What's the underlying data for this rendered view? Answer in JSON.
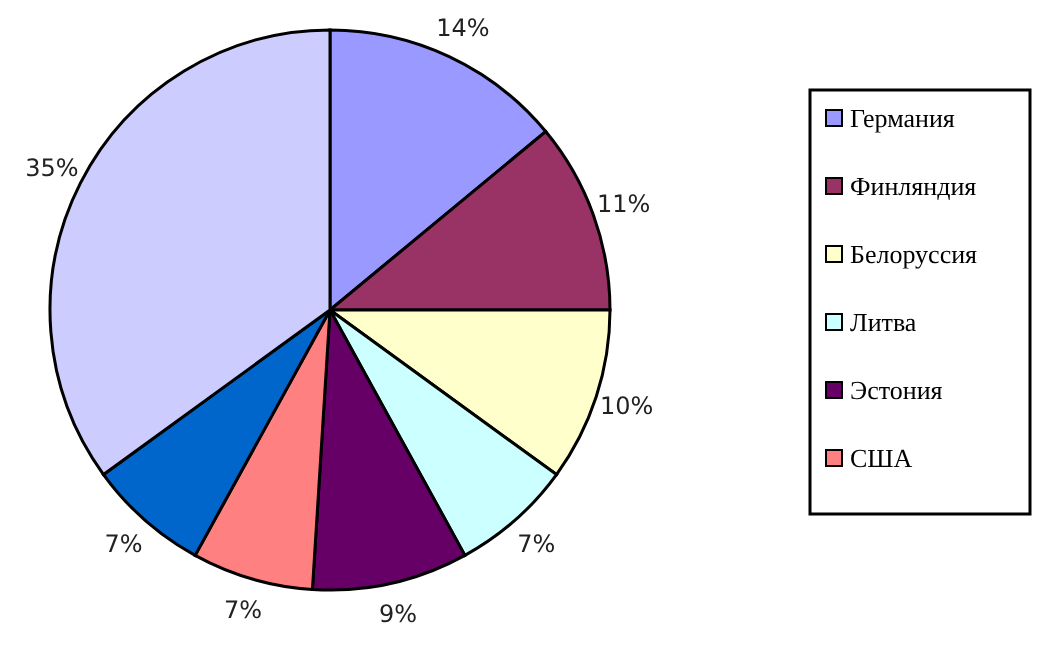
{
  "chart_data": {
    "type": "pie",
    "categories": [
      "Германия",
      "Финляндия",
      "Белоруссия",
      "Литва",
      "Эстония",
      "США",
      null,
      null
    ],
    "values": [
      14,
      11,
      10,
      7,
      9,
      7,
      7,
      35
    ],
    "value_labels": [
      "14%",
      "11%",
      "10%",
      "7%",
      "9%",
      "7%",
      "7%",
      "35%"
    ],
    "colors": [
      "#9999ff",
      "#993366",
      "#ffffcc",
      "#ccffff",
      "#660066",
      "#ff8080",
      "#0066cc",
      "#ccccff"
    ],
    "legend": "right"
  }
}
